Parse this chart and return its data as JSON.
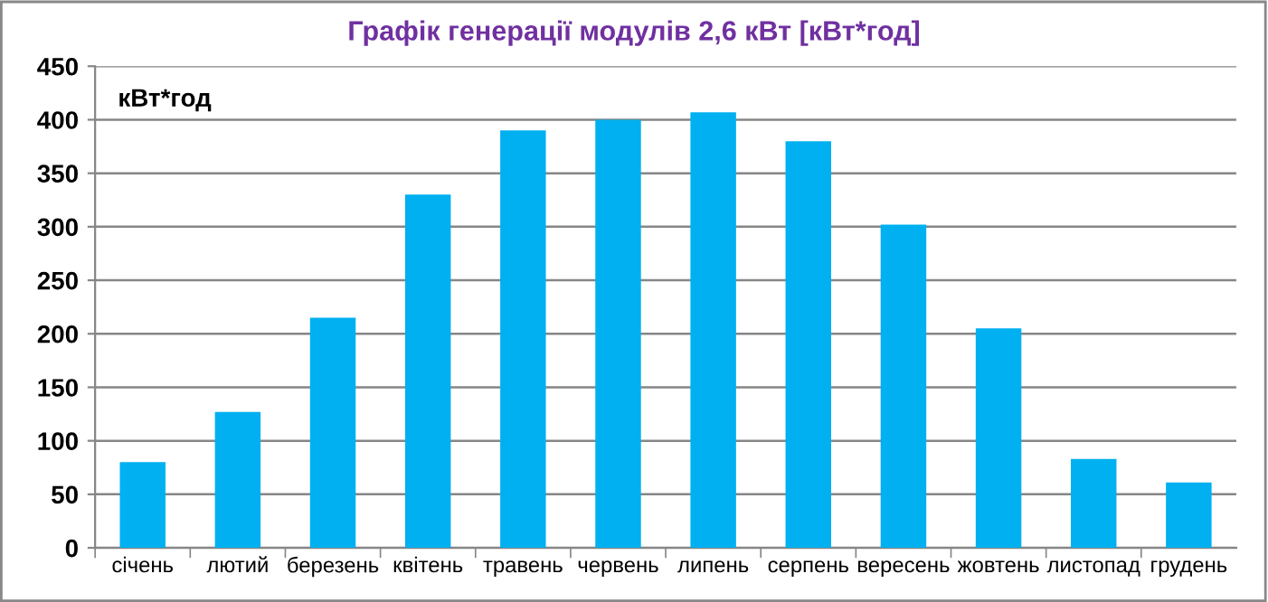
{
  "chart_data": {
    "type": "bar",
    "title": "Графік генерації модулів 2,6 кВт [кВт*год]",
    "ylabel": "кВт*год",
    "categories": [
      "січень",
      "лютий",
      "березень",
      "квітень",
      "травень",
      "червень",
      "липень",
      "серпень",
      "вересень",
      "жовтень",
      "листопад",
      "грудень"
    ],
    "values": [
      80,
      127,
      215,
      330,
      390,
      400,
      407,
      380,
      302,
      205,
      83,
      61
    ],
    "color": "#00b0f0",
    "ylim": [
      0,
      450
    ],
    "yticks": [
      0,
      50,
      100,
      150,
      200,
      250,
      300,
      350,
      400,
      450
    ],
    "grid": "y",
    "legend": false
  }
}
